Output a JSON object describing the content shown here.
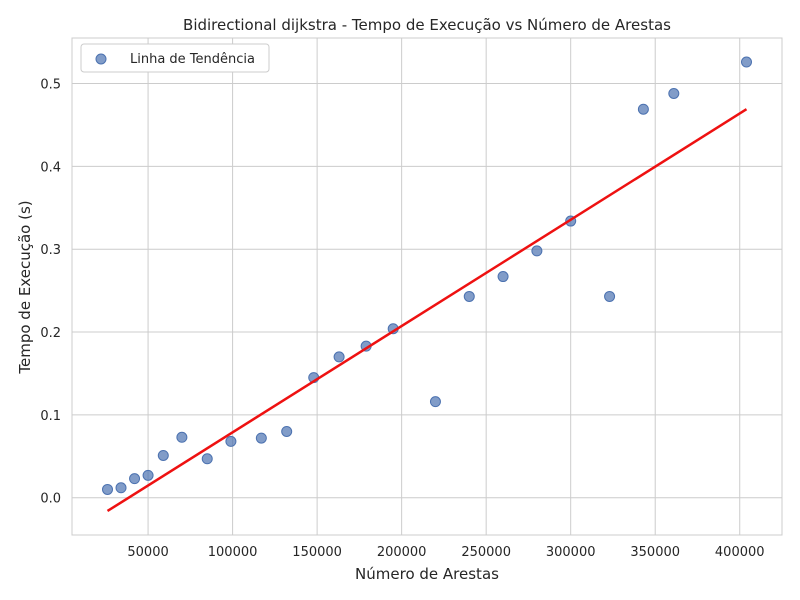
{
  "chart_data": {
    "type": "scatter",
    "title": "Bidirectional dijkstra - Tempo de Execução vs Número de Arestas",
    "xlabel": "Número de Arestas",
    "ylabel": "Tempo de Execução (s)",
    "xlim": [
      5000,
      425000
    ],
    "ylim": [
      -0.045,
      0.555
    ],
    "xticks": [
      50000,
      100000,
      150000,
      200000,
      250000,
      300000,
      350000,
      400000
    ],
    "xtick_labels": [
      "50000",
      "100000",
      "150000",
      "200000",
      "250000",
      "300000",
      "350000",
      "400000"
    ],
    "yticks": [
      0.0,
      0.1,
      0.2,
      0.3,
      0.4,
      0.5
    ],
    "ytick_labels": [
      "0.0",
      "0.1",
      "0.2",
      "0.3",
      "0.4",
      "0.5"
    ],
    "grid": true,
    "legend": {
      "position": "top-left",
      "entries": [
        "Linha de Tendência"
      ]
    },
    "series": [
      {
        "name": "Linha de Tendência",
        "kind": "scatter",
        "color": "#4c72b0",
        "x": [
          26000,
          34000,
          42000,
          50000,
          59000,
          70000,
          85000,
          99000,
          117000,
          132000,
          148000,
          163000,
          179000,
          195000,
          220000,
          240000,
          260000,
          280000,
          300000,
          323000,
          343000,
          361000,
          404000
        ],
        "y": [
          0.01,
          0.012,
          0.023,
          0.027,
          0.051,
          0.073,
          0.047,
          0.068,
          0.072,
          0.08,
          0.145,
          0.17,
          0.183,
          0.204,
          0.116,
          0.243,
          0.267,
          0.298,
          0.334,
          0.243,
          0.469,
          0.488,
          0.526
        ]
      },
      {
        "kind": "line",
        "color": "#ee1111",
        "x": [
          26000,
          404000
        ],
        "y": [
          -0.016,
          0.469
        ]
      }
    ]
  }
}
